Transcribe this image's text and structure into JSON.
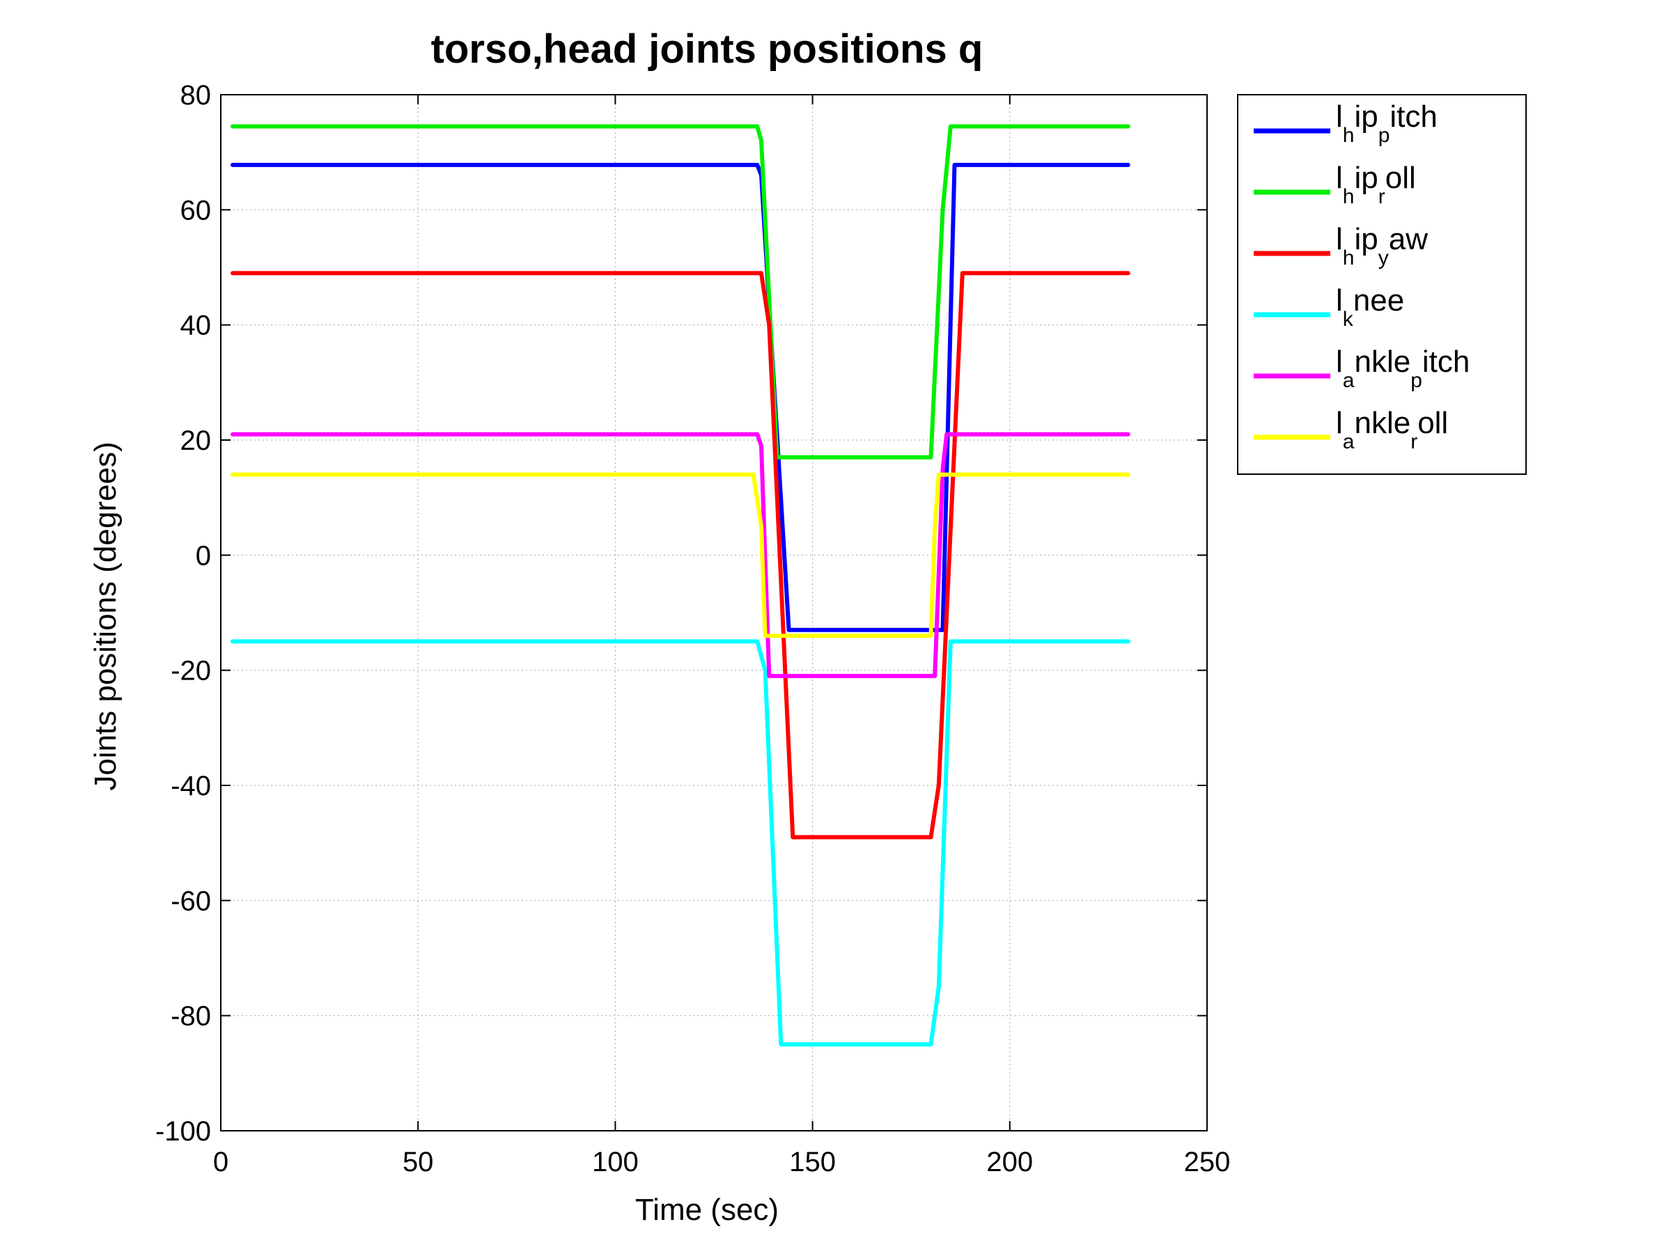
{
  "chart_data": {
    "type": "line",
    "title": "torso,head joints positions q",
    "xlabel": "Time (sec)",
    "ylabel": "Joints positions (degrees)",
    "xlim": [
      0,
      250
    ],
    "ylim": [
      -100,
      80
    ],
    "xticks": [
      0,
      50,
      100,
      150,
      200,
      250
    ],
    "yticks": [
      -100,
      -80,
      -60,
      -40,
      -20,
      0,
      20,
      40,
      60,
      80
    ],
    "xtick_labels": [
      "0",
      "50",
      "100",
      "150",
      "200",
      "250"
    ],
    "ytick_labels": [
      "-100",
      "-80",
      "-60",
      "-40",
      "-20",
      "0",
      "20",
      "40",
      "60",
      "80"
    ],
    "grid": true,
    "legend_position": "outside-top-right",
    "series": [
      {
        "name": "l_hip_pitch",
        "legend": {
          "a": "l",
          "sub1": "h",
          "b": "ip",
          "sub2": "p",
          "c": "itch"
        },
        "color": "#0000ff",
        "x": [
          3,
          136,
          137,
          144,
          183,
          186,
          230
        ],
        "y": [
          67.8,
          67.8,
          66,
          -13,
          -13,
          67.8,
          67.8
        ]
      },
      {
        "name": "l_hip_roll",
        "legend": {
          "a": "l",
          "sub1": "h",
          "b": "ip",
          "sub2": "r",
          "c": "oll"
        },
        "color": "#00ee00",
        "x": [
          3,
          136,
          137,
          141,
          180,
          183,
          185,
          230
        ],
        "y": [
          74.5,
          74.5,
          72,
          17,
          17,
          60,
          74.5,
          74.5
        ]
      },
      {
        "name": "l_hip_yaw",
        "legend": {
          "a": "l",
          "sub1": "h",
          "b": "ip",
          "sub2": "y",
          "c": "aw"
        },
        "color": "#ff0000",
        "x": [
          3,
          137,
          139,
          145,
          180,
          182,
          188,
          230
        ],
        "y": [
          49,
          49,
          40,
          -49,
          -49,
          -40,
          49,
          49
        ]
      },
      {
        "name": "l_knee",
        "legend": {
          "a": "l",
          "sub1": "k",
          "b": "nee",
          "sub2": "",
          "c": ""
        },
        "color": "#00ffff",
        "x": [
          3,
          136,
          138,
          142,
          180,
          182,
          185,
          230
        ],
        "y": [
          -15,
          -15,
          -20,
          -85,
          -85,
          -75,
          -15,
          -15
        ]
      },
      {
        "name": "l_ankle_pitch",
        "legend": {
          "a": "l",
          "sub1": "a",
          "b": "nkle",
          "sub2": "p",
          "c": "itch"
        },
        "color": "#ff00ff",
        "x": [
          3,
          136,
          137,
          139,
          181,
          183,
          184,
          230
        ],
        "y": [
          21,
          21,
          19,
          -21,
          -21,
          15,
          21,
          21
        ]
      },
      {
        "name": "l_ankle_roll",
        "legend": {
          "a": "l",
          "sub1": "a",
          "b": "nkle",
          "sub2": "r",
          "c": "oll"
        },
        "color": "#ffff00",
        "x": [
          3,
          135,
          137,
          138,
          180,
          181,
          182,
          230
        ],
        "y": [
          14,
          14,
          5,
          -14,
          -14,
          5,
          14,
          14
        ]
      }
    ]
  }
}
